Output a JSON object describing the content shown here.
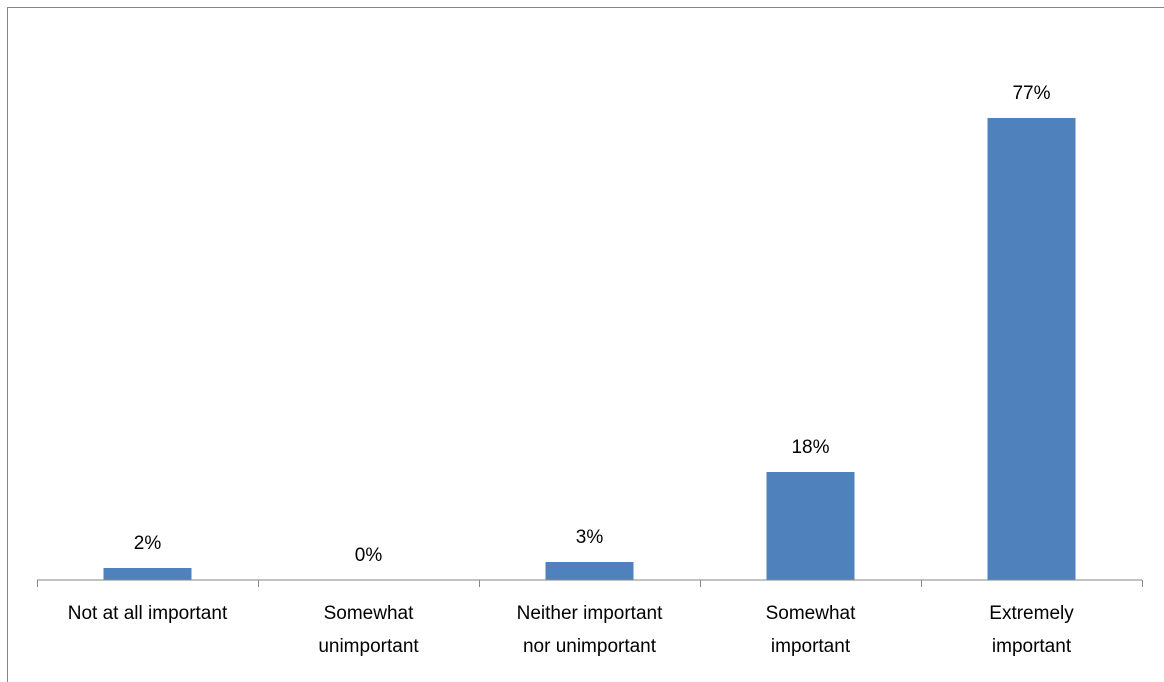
{
  "chart_data": {
    "type": "bar",
    "categories": [
      "Not at all important",
      "Somewhat unimportant",
      "Neither important nor unimportant",
      "Somewhat important",
      "Extremely important"
    ],
    "category_lines": [
      [
        "Not at all important"
      ],
      [
        "Somewhat",
        "unimportant"
      ],
      [
        "Neither important",
        "nor unimportant"
      ],
      [
        "Somewhat",
        "important"
      ],
      [
        "Extremely",
        "important"
      ]
    ],
    "values": [
      2,
      0,
      3,
      18,
      77
    ],
    "value_labels": [
      "2%",
      "0%",
      "3%",
      "18%",
      "77%"
    ],
    "ylim": [
      0,
      80
    ],
    "title": "",
    "xlabel": "",
    "ylabel": "",
    "grid": false,
    "legend": "none",
    "bar_color": "#4f81bd",
    "axis_color": "#868686"
  }
}
